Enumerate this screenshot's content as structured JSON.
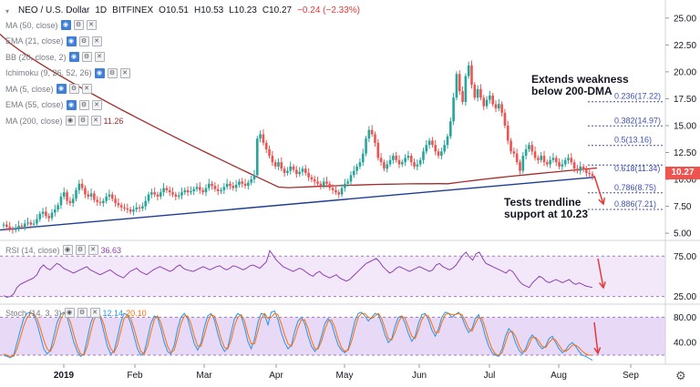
{
  "header": {
    "symbol": "NEO / U.S. Dollar",
    "interval": "1D",
    "exchange": "BITFINEX",
    "open": "O10.51",
    "high": "H10.53",
    "low": "L10.23",
    "close": "C10.27",
    "change": "−0.24 (−2.33%)"
  },
  "indicators": [
    {
      "label": "MA (50, close)",
      "value": ""
    },
    {
      "label": "EMA (21, close)",
      "value": ""
    },
    {
      "label": "BB (20, close, 2)",
      "value": ""
    },
    {
      "label": "Ichimoku (9, 26, 52, 26)",
      "value": ""
    },
    {
      "label": "MA (5, close)",
      "value": ""
    },
    {
      "label": "EMA (55, close)",
      "value": ""
    },
    {
      "label": "MA (200, close)",
      "value": "11.26"
    }
  ],
  "rsi": {
    "label": "RSI (14, close)",
    "value": "36.63"
  },
  "stoch": {
    "label": "Stoch (14, 3, 3)",
    "value_k": "12.14",
    "value_d": "20.10"
  },
  "annotations": {
    "top_line1": "Extends weakness",
    "top_line2": "below 200-DMA",
    "bottom_line1": "Tests trendline",
    "bottom_line2": "support at 10.23"
  },
  "current_price": "10.27",
  "colors": {
    "up": "#26a69a",
    "down": "#ef5350",
    "ma200": "#a52a2a",
    "trendline": "#1e3c96",
    "fib": "#3f51b5",
    "rsi": "#8e3fb6",
    "stoch_k": "#2196f3",
    "stoch_d": "#ff6d00",
    "arrow": "#e53935",
    "price_tag": "#ef5350",
    "band": "#e9d6f5"
  },
  "chart_data": [
    {
      "type": "candlestick",
      "title": "NEO / U.S. Dollar 1D BITFINEX",
      "x_tick_labels": [
        "2019",
        "Feb",
        "Mar",
        "Apr",
        "May",
        "Jun",
        "Jul",
        "Aug",
        "Sep"
      ],
      "y_tick_labels": [
        "5.00",
        "7.50",
        "10.00",
        "12.50",
        "15.00",
        "17.50",
        "20.00",
        "22.50",
        "25.00"
      ],
      "ylim": [
        4.5,
        26.0
      ],
      "fibonacci": [
        {
          "ratio": "0.236",
          "price": 17.22,
          "label": "0.236(17.22)"
        },
        {
          "ratio": "0.382",
          "price": 14.97,
          "label": "0.382(14.97)"
        },
        {
          "ratio": "0.5",
          "price": 13.16,
          "label": "0.5(13.16)"
        },
        {
          "ratio": "0.618",
          "price": 11.34,
          "label": "0.618(11.34)"
        },
        {
          "ratio": "0.786",
          "price": 8.75,
          "label": "0.786(8.75)"
        },
        {
          "ratio": "0.886",
          "price": 7.21,
          "label": "0.886(7.21)"
        }
      ],
      "trendline": {
        "from": {
          "x": "2018-12-20",
          "y": 5.5
        },
        "to": {
          "x": "2019-08-14",
          "y": 10.23
        }
      },
      "series": [
        {
          "name": "Price",
          "closes": [
            5.8,
            5.6,
            5.4,
            5.3,
            5.5,
            5.7,
            5.6,
            5.9,
            6.0,
            5.8,
            5.9,
            6.3,
            6.8,
            7.0,
            6.6,
            6.4,
            6.9,
            7.2,
            7.6,
            8.4,
            8.8,
            8.0,
            7.8,
            8.2,
            9.0,
            9.6,
            9.2,
            8.6,
            8.4,
            8.7,
            8.1,
            7.9,
            7.8,
            8.0,
            8.4,
            8.6,
            8.2,
            7.8,
            7.6,
            7.4,
            7.3,
            7.2,
            7.0,
            7.2,
            7.4,
            7.3,
            7.5,
            8.0,
            8.6,
            8.8,
            8.6,
            8.4,
            8.8,
            9.2,
            9.0,
            8.8,
            8.6,
            8.4,
            8.5,
            8.8,
            9.0,
            8.8,
            8.9,
            9.1,
            9.3,
            9.0,
            8.8,
            9.2,
            9.6,
            9.4,
            9.1,
            8.9,
            9.0,
            9.3,
            9.6,
            9.4,
            9.2,
            9.5,
            9.8,
            9.6,
            9.4,
            9.7,
            10.0,
            10.4,
            13.8,
            14.2,
            13.4,
            12.8,
            12.2,
            11.6,
            11.2,
            11.6,
            11.0,
            10.6,
            10.8,
            11.2,
            10.9,
            10.5,
            10.7,
            11.0,
            10.6,
            10.2,
            10.0,
            9.8,
            9.6,
            9.4,
            9.8,
            9.6,
            9.2,
            9.0,
            8.8,
            8.6,
            9.2,
            9.6,
            9.8,
            10.4,
            10.8,
            11.2,
            11.6,
            12.4,
            13.8,
            14.6,
            14.2,
            13.4,
            12.0,
            11.6,
            11.0,
            11.4,
            11.8,
            12.2,
            11.8,
            11.4,
            11.6,
            12.0,
            12.2,
            11.6,
            11.2,
            11.4,
            11.8,
            12.6,
            13.2,
            13.6,
            13.2,
            12.6,
            12.2,
            12.6,
            13.2,
            14.0,
            15.4,
            17.6,
            19.8,
            18.2,
            17.2,
            19.6,
            20.6,
            18.8,
            17.6,
            18.4,
            17.6,
            16.8,
            17.4,
            17.8,
            17.0,
            16.6,
            17.0,
            16.2,
            15.0,
            13.6,
            12.6,
            12.4,
            11.6,
            10.8,
            12.2,
            12.8,
            13.2,
            12.6,
            12.0,
            11.8,
            12.2,
            11.6,
            11.4,
            11.8,
            12.0,
            11.6,
            11.2,
            11.4,
            11.8,
            12.0,
            11.6,
            11.0,
            10.8,
            11.2,
            10.9,
            10.6,
            10.5,
            10.3
          ]
        },
        {
          "name": "MA (200, close)",
          "closes": []
        }
      ]
    },
    {
      "type": "line",
      "title": "RSI (14, close)",
      "y_tick_labels": [
        "25.00",
        "75.00"
      ],
      "ylim": [
        20,
        90
      ],
      "series": [
        {
          "name": "RSI",
          "values": [
            26,
            24,
            25,
            28,
            36,
            40,
            42,
            44,
            46,
            48,
            52,
            60,
            64,
            60,
            58,
            62,
            66,
            64,
            60,
            58,
            56,
            54,
            56,
            58,
            60,
            62,
            58,
            56,
            54,
            52,
            54,
            56,
            58,
            55,
            52,
            50,
            48,
            52,
            56,
            58,
            60,
            56,
            54,
            52,
            55,
            58,
            60,
            62,
            60,
            58,
            56,
            58,
            62,
            64,
            60,
            58,
            57,
            56,
            58,
            60,
            62,
            60,
            58,
            60,
            62,
            63,
            60,
            58,
            60,
            63,
            62,
            60,
            58,
            60,
            63,
            64,
            62,
            60,
            64,
            68,
            82,
            76,
            70,
            66,
            62,
            60,
            58,
            56,
            58,
            60,
            58,
            55,
            52,
            50,
            54,
            56,
            52,
            50,
            48,
            50,
            52,
            48,
            46,
            44,
            46,
            50,
            54,
            58,
            62,
            66,
            68,
            70,
            72,
            68,
            62,
            58,
            54,
            56,
            60,
            62,
            60,
            58,
            56,
            58,
            60,
            62,
            60,
            58,
            56,
            58,
            64,
            66,
            62,
            60,
            58,
            60,
            64,
            70,
            76,
            80,
            74,
            70,
            78,
            80,
            72,
            66,
            64,
            62,
            60,
            58,
            56,
            54,
            58,
            56,
            50,
            44,
            40,
            38,
            36,
            42,
            46,
            50,
            48,
            44,
            42,
            44,
            46,
            44,
            42,
            44,
            46,
            42,
            40,
            42,
            40,
            38,
            37,
            36
          ]
        }
      ]
    },
    {
      "type": "line",
      "title": "Stoch (14, 3, 3)",
      "y_tick_labels": [
        "40.00",
        "80.00"
      ],
      "ylim": [
        10,
        95
      ],
      "series": [
        {
          "name": "%K",
          "values": [
            20,
            18,
            16,
            20,
            40,
            60,
            78,
            86,
            88,
            84,
            70,
            50,
            30,
            22,
            28,
            50,
            72,
            84,
            88,
            80,
            60,
            40,
            26,
            18,
            22,
            46,
            70,
            84,
            86,
            78,
            56,
            34,
            22,
            26,
            48,
            72,
            86,
            84,
            70,
            50,
            30,
            20,
            24,
            46,
            70,
            82,
            80,
            62,
            40,
            26,
            22,
            36,
            62,
            80,
            86,
            78,
            58,
            38,
            28,
            40,
            64,
            82,
            86,
            76,
            54,
            36,
            26,
            32,
            56,
            78,
            86,
            82,
            64,
            42,
            30,
            46,
            72,
            86,
            84,
            68,
            88,
            90,
            76,
            56,
            40,
            30,
            36,
            58,
            74,
            80,
            70,
            50,
            34,
            26,
            32,
            50,
            70,
            78,
            70,
            52,
            36,
            28,
            24,
            30,
            52,
            74,
            86,
            88,
            82,
            74,
            80,
            86,
            84,
            70,
            52,
            40,
            46,
            66,
            80,
            82,
            70,
            54,
            42,
            50,
            70,
            84,
            86,
            76,
            60,
            50,
            62,
            80,
            88,
            86,
            80,
            84,
            88,
            80,
            66,
            56,
            62,
            78,
            84,
            70,
            50,
            34,
            24,
            20,
            18,
            30,
            50,
            62,
            56,
            40,
            28,
            22,
            30,
            44,
            52,
            46,
            36,
            30,
            34,
            46,
            50,
            40,
            30,
            24,
            28,
            36,
            40,
            34,
            26,
            20,
            18,
            15,
            12
          ]
        },
        {
          "name": "%D",
          "values": [
            22,
            20,
            18,
            18,
            30,
            48,
            66,
            80,
            86,
            86,
            78,
            62,
            44,
            30,
            26,
            38,
            58,
            76,
            86,
            84,
            72,
            52,
            34,
            22,
            20,
            34,
            56,
            76,
            84,
            82,
            68,
            46,
            30,
            24,
            36,
            58,
            78,
            84,
            78,
            62,
            42,
            26,
            22,
            34,
            56,
            76,
            82,
            72,
            52,
            34,
            24,
            28,
            48,
            70,
            82,
            82,
            70,
            50,
            34,
            34,
            52,
            72,
            84,
            82,
            66,
            46,
            32,
            30,
            44,
            66,
            80,
            84,
            74,
            54,
            38,
            38,
            58,
            78,
            86,
            78,
            80,
            86,
            84,
            70,
            52,
            38,
            34,
            46,
            64,
            76,
            76,
            62,
            44,
            30,
            30,
            42,
            60,
            74,
            76,
            64,
            46,
            32,
            26,
            28,
            42,
            62,
            80,
            86,
            86,
            80,
            78,
            82,
            86,
            78,
            62,
            46,
            44,
            56,
            72,
            82,
            78,
            64,
            50,
            46,
            60,
            76,
            84,
            82,
            70,
            56,
            56,
            72,
            84,
            86,
            84,
            84,
            86,
            84,
            74,
            62,
            58,
            70,
            80,
            78,
            62,
            44,
            30,
            22,
            20,
            24,
            40,
            56,
            58,
            50,
            36,
            26,
            26,
            36,
            48,
            48,
            42,
            34,
            32,
            40,
            46,
            44,
            36,
            28,
            26,
            30,
            36,
            36,
            32,
            26,
            22,
            20,
            20
          ]
        }
      ]
    }
  ],
  "time_axis_settings_icon": "gear-icon"
}
